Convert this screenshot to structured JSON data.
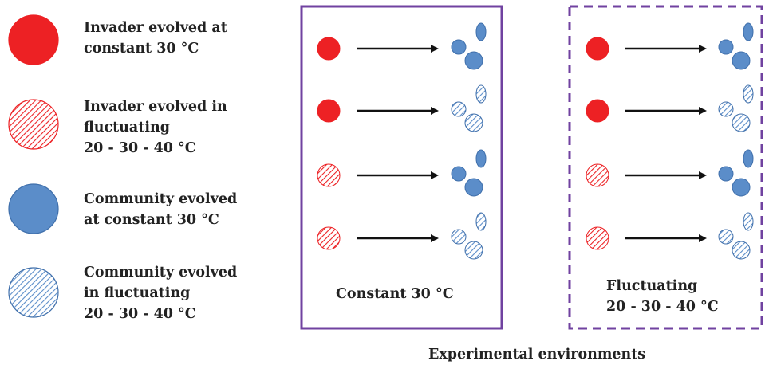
{
  "colors": {
    "invader": "#ED2124",
    "community_fill": "#5B8DC9",
    "community_stroke": "#3F6FAB",
    "box": "#7042A0",
    "arrow": "#111111"
  },
  "legend": [
    {
      "kind": "invader",
      "pattern": "solid",
      "lines": [
        "Invader evolved at",
        "constant 30 °C"
      ]
    },
    {
      "kind": "invader",
      "pattern": "hatched",
      "lines": [
        "Invader evolved in",
        "fluctuating",
        "20 - 30 - 40 °C"
      ]
    },
    {
      "kind": "community",
      "pattern": "solid",
      "lines": [
        "Community evolved",
        "at constant 30 °C"
      ]
    },
    {
      "kind": "community",
      "pattern": "hatched",
      "lines": [
        "Community evolved",
        "in fluctuating",
        "20 - 30 - 40 °C"
      ]
    }
  ],
  "panels": [
    {
      "border": "solid",
      "label_lines": [
        "Constant 30 °C"
      ],
      "rows": [
        {
          "invader": "solid",
          "community": "solid"
        },
        {
          "invader": "solid",
          "community": "hatched"
        },
        {
          "invader": "hatched",
          "community": "solid"
        },
        {
          "invader": "hatched",
          "community": "hatched"
        }
      ]
    },
    {
      "border": "dashed",
      "label_lines": [
        "Fluctuating",
        "20 - 30 - 40 °C"
      ],
      "rows": [
        {
          "invader": "solid",
          "community": "solid"
        },
        {
          "invader": "solid",
          "community": "hatched"
        },
        {
          "invader": "hatched",
          "community": "solid"
        },
        {
          "invader": "hatched",
          "community": "hatched"
        }
      ]
    }
  ],
  "footer": "Experimental environments"
}
